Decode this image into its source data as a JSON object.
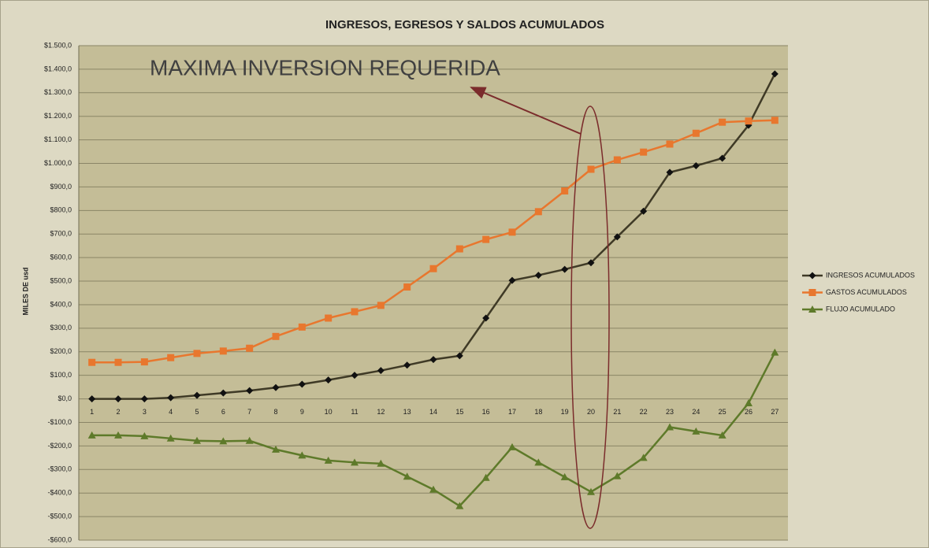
{
  "chart_data": {
    "type": "line",
    "title": "INGRESOS, EGRESOS Y SALDOS ACUMULADOS",
    "ylabel": "MILES DE usd",
    "annotation": "MAXIMA INVERSION REQUERIDA",
    "categories": [
      1,
      2,
      3,
      4,
      5,
      6,
      7,
      8,
      9,
      10,
      11,
      12,
      13,
      14,
      15,
      16,
      17,
      18,
      19,
      20,
      21,
      22,
      23,
      24,
      25,
      26,
      27
    ],
    "series": [
      {
        "name": "INGRESOS ACUMULADOS",
        "color": "#3f3a26",
        "marker": "diamond",
        "values": [
          0,
          0,
          0,
          5,
          15,
          25,
          35,
          48,
          62,
          80,
          100,
          120,
          143,
          167,
          183,
          343,
          503,
          525,
          550,
          578,
          688,
          797,
          962,
          990,
          1022,
          1162,
          1380
        ]
      },
      {
        "name": "GASTOS ACUMULADOS",
        "color": "#e8772e",
        "marker": "square",
        "values": [
          155,
          155,
          157,
          175,
          193,
          203,
          215,
          265,
          305,
          343,
          370,
          397,
          475,
          553,
          637,
          677,
          708,
          795,
          883,
          975,
          1015,
          1048,
          1082,
          1128,
          1175,
          1180,
          1183
        ]
      },
      {
        "name": "FLUJO ACUMULADO",
        "color": "#5e7a2a",
        "marker": "triangle",
        "values": [
          -155,
          -155,
          -158,
          -168,
          -178,
          -180,
          -178,
          -215,
          -240,
          -262,
          -270,
          -275,
          -330,
          -385,
          -455,
          -335,
          -205,
          -270,
          -332,
          -395,
          -328,
          -250,
          -120,
          -138,
          -155,
          -18,
          197
        ]
      }
    ],
    "ylim": [
      -600,
      1500
    ],
    "yticks": [
      {
        "value": -600,
        "label": "-$600,0"
      },
      {
        "value": -500,
        "label": "-$500,0"
      },
      {
        "value": -400,
        "label": "-$400,0"
      },
      {
        "value": -300,
        "label": "-$300,0"
      },
      {
        "value": -200,
        "label": "-$200,0"
      },
      {
        "value": -100,
        "label": "-$100,0"
      },
      {
        "value": 0,
        "label": "$0,0"
      },
      {
        "value": 100,
        "label": "$100,0"
      },
      {
        "value": 200,
        "label": "$200,0"
      },
      {
        "value": 300,
        "label": "$300,0"
      },
      {
        "value": 400,
        "label": "$400,0"
      },
      {
        "value": 500,
        "label": "$500,0"
      },
      {
        "value": 600,
        "label": "$600,0"
      },
      {
        "value": 700,
        "label": "$700,0"
      },
      {
        "value": 800,
        "label": "$800,0"
      },
      {
        "value": 900,
        "label": "$900,0"
      },
      {
        "value": 1000,
        "label": "$1.000,0"
      },
      {
        "value": 1100,
        "label": "$1.100,0"
      },
      {
        "value": 1200,
        "label": "$1.200,0"
      },
      {
        "value": 1300,
        "label": "$1.300,0"
      },
      {
        "value": 1400,
        "label": "$1.400,0"
      },
      {
        "value": 1500,
        "label": "$1.500,0"
      }
    ],
    "grid": true,
    "legend": "right"
  }
}
